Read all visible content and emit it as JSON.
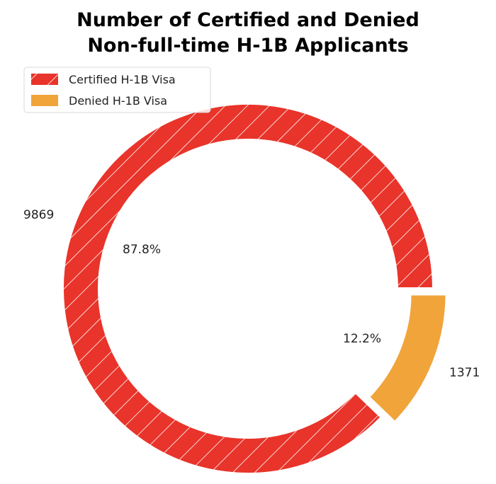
{
  "chart_data": {
    "type": "pie",
    "donut": true,
    "title_lines": [
      "Number of Certified and Denied",
      "Non-full-time H-1B Applicants"
    ],
    "categories": [
      "Certified H-1B Visa",
      "Denied H-1B Visa"
    ],
    "values": [
      9869,
      1371
    ],
    "value_labels": [
      "9869",
      "1371"
    ],
    "percent_labels": [
      "87.8%",
      "12.2%"
    ],
    "colors": [
      "#e8342a",
      "#f0a43a"
    ],
    "hatch": [
      "diagonal",
      "none"
    ],
    "exploded": [
      "Denied H-1B Visa"
    ],
    "legend_position": "top-left"
  }
}
